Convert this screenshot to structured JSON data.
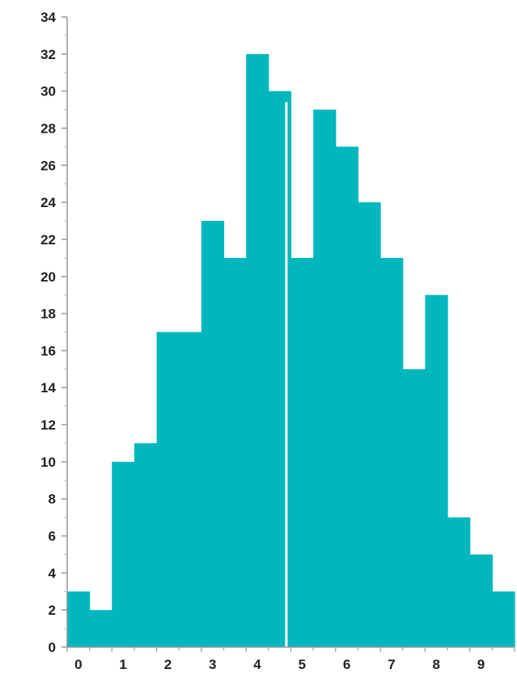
{
  "chart_data": {
    "type": "bar",
    "title": "",
    "xlabel": "",
    "ylabel": "",
    "x_tick_labels": [
      "0",
      "1",
      "2",
      "3",
      "4",
      "5",
      "6",
      "7",
      "8",
      "9"
    ],
    "bin_width": 0.5,
    "bins_start": [
      0,
      0.5,
      1,
      1.5,
      2,
      2.5,
      3,
      3.5,
      4,
      4.5,
      5,
      5.5,
      6,
      6.5,
      7,
      7.5,
      8,
      8.5,
      9,
      9.5
    ],
    "values": [
      3,
      2,
      10,
      11,
      17,
      17,
      23,
      21,
      32,
      30,
      21,
      29,
      27,
      24,
      21,
      15,
      19,
      7,
      5,
      3
    ],
    "ylim": [
      0,
      34
    ],
    "xlim": [
      0,
      10
    ],
    "y_tick_labels": [
      "0",
      "2",
      "4",
      "6",
      "8",
      "10",
      "12",
      "14",
      "16",
      "18",
      "20",
      "22",
      "24",
      "26",
      "28",
      "30",
      "32",
      "34"
    ],
    "grid": false,
    "legend": "none",
    "bar_color": "#00b7be",
    "marker_line": {
      "x": 4.9,
      "color": "#ffffff"
    }
  }
}
